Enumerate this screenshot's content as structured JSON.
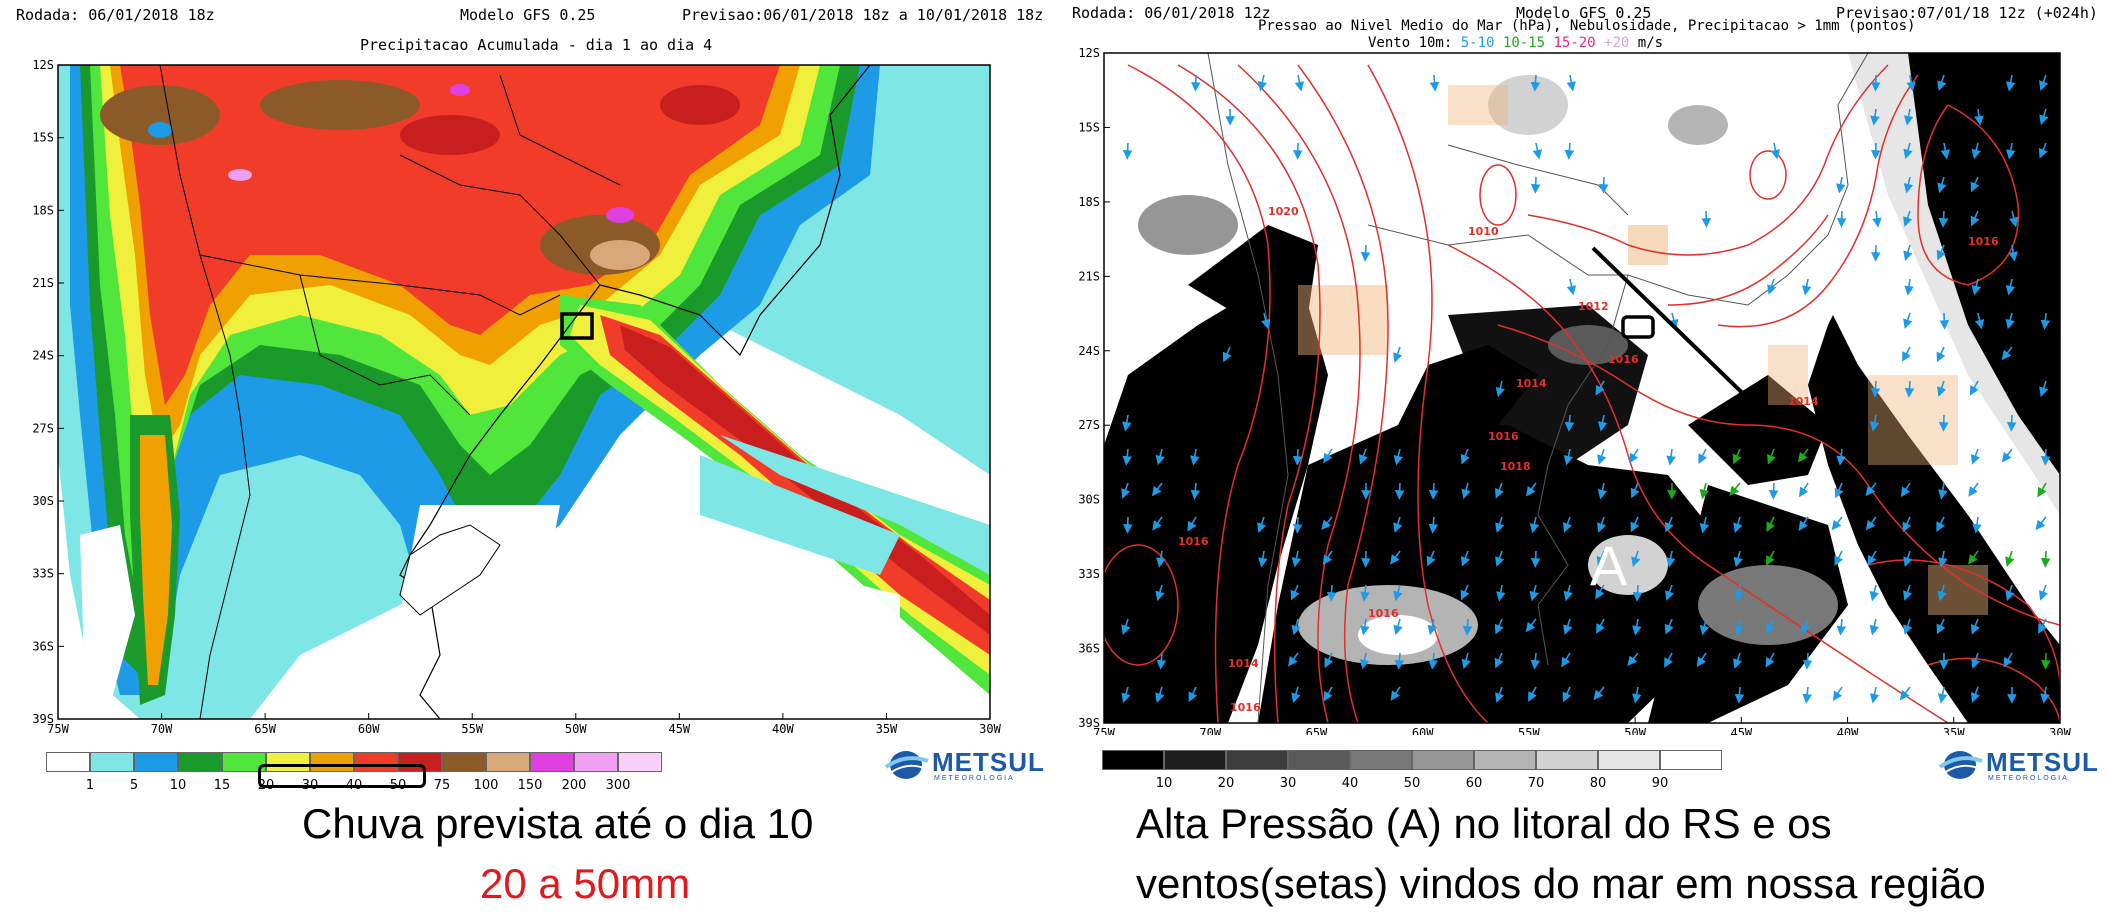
{
  "left": {
    "rodada": "Rodada: 06/01/2018 18z",
    "modelo": "Modelo GFS 0.25",
    "previsao": "Previsao:06/01/2018 18z a 10/01/2018 18z",
    "subtitle": "Precipitacao Acumulada - dia 1 ao dia 4",
    "lat_labels": [
      "12S",
      "15S",
      "18S",
      "21S",
      "24S",
      "27S",
      "30S",
      "33S",
      "36S",
      "39S"
    ],
    "lon_labels": [
      "75W",
      "70W",
      "65W",
      "60W",
      "55W",
      "50W",
      "45W",
      "40W",
      "35W",
      "30W"
    ],
    "colorbar": {
      "labels": [
        "1",
        "5",
        "10",
        "15",
        "20",
        "30",
        "40",
        "50",
        "75",
        "100",
        "150",
        "200",
        "300"
      ],
      "colors": [
        "#ffffff",
        "#7fe6e6",
        "#1e9be6",
        "#1a9a2a",
        "#50e63c",
        "#f0f03c",
        "#f0a000",
        "#f03c28",
        "#c81e1e",
        "#8c5a28",
        "#d8a87a",
        "#e040e0",
        "#f0a0f0",
        "#f8d0f8"
      ]
    },
    "caption_line1": "Chuva prevista até o dia 10",
    "caption_line2": "20 a 50mm",
    "caption_line2_color": "#e0191e",
    "logo_text": "METSUL",
    "logo_sub": "METEOROLOGIA"
  },
  "right": {
    "rodada": "Rodada: 06/01/2018 12z",
    "modelo": "Modelo GFS 0.25",
    "previsao": "Previsao:07/01/18 12z (+024h)",
    "subtitle1": "Pressao ao Nivel Medio do Mar (hPa), Nebulosidade, Precipitacao > 1mm (pontos)",
    "subtitle2_prefix": "Vento 10m:",
    "wind_bins": [
      {
        "label": "5-10",
        "color": "#1e9be6"
      },
      {
        "label": "10-15",
        "color": "#1aaa1a"
      },
      {
        "label": "15-20",
        "color": "#e6287a"
      },
      {
        "label": "+20",
        "color": "#d8a0e6"
      }
    ],
    "wind_units": "m/s",
    "lat_labels": [
      "12S",
      "15S",
      "18S",
      "21S",
      "24S",
      "27S",
      "30S",
      "33S",
      "36S",
      "39S"
    ],
    "lon_labels": [
      "75W",
      "70W",
      "65W",
      "60W",
      "55W",
      "50W",
      "45W",
      "40W",
      "35W",
      "30W"
    ],
    "isobar_labels": [
      "1020",
      "1010",
      "1012",
      "1016",
      "1014",
      "1016",
      "1018",
      "1016",
      "1014",
      "1016",
      "1014",
      "1016",
      "1016"
    ],
    "high_marker": "A",
    "colorbar": {
      "labels": [
        "10",
        "20",
        "30",
        "40",
        "50",
        "60",
        "70",
        "80",
        "90"
      ],
      "colors": [
        "#000000",
        "#1e1e1e",
        "#3c3c3c",
        "#5a5a5a",
        "#787878",
        "#969696",
        "#b4b4b4",
        "#d2d2d2",
        "#e6e6e6",
        "#ffffff"
      ]
    },
    "caption_line1": "Alta Pressão (A) no litoral do RS e os",
    "caption_line2": "ventos(setas) vindos do mar em nossa região",
    "logo_text": "METSUL",
    "logo_sub": "METEOROLOGIA"
  }
}
